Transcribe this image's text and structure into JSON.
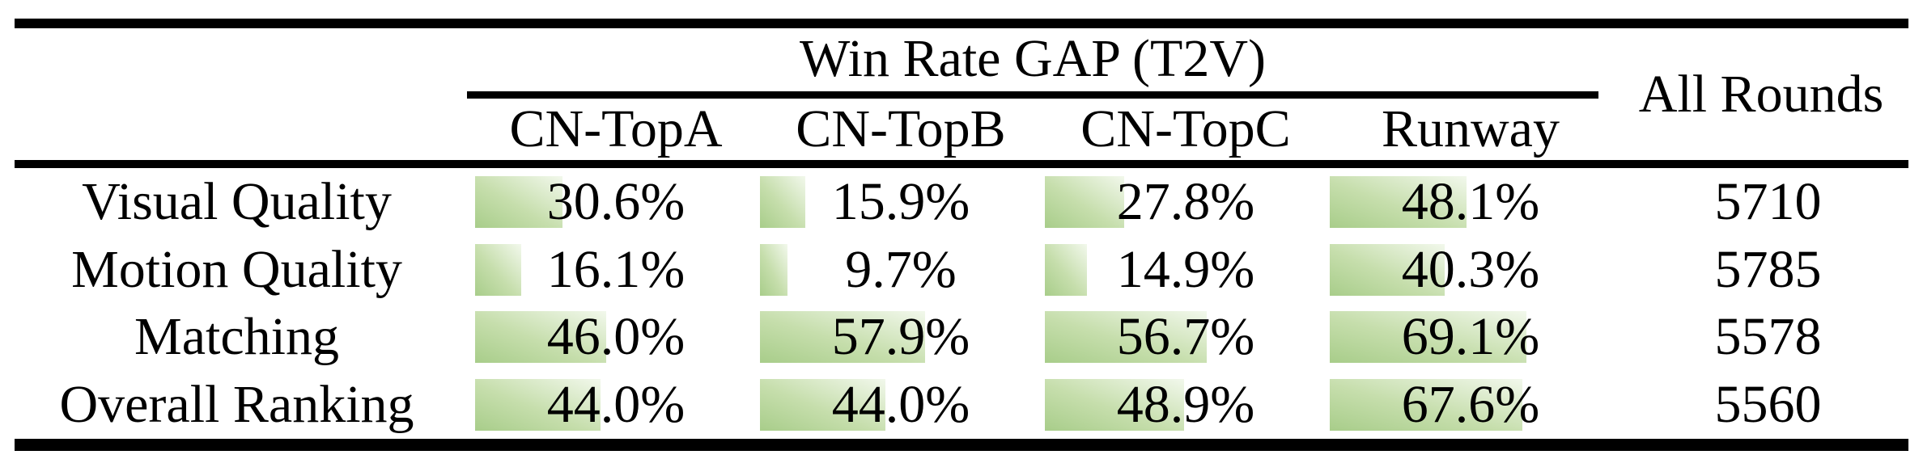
{
  "table": {
    "group_header": "Win Rate GAP (T2V)",
    "all_rounds_header": "All Rounds",
    "columns": [
      "CN-TopA",
      "CN-TopB",
      "CN-TopC",
      "Runway"
    ],
    "rows": [
      {
        "label": "Visual Quality",
        "cells": [
          {
            "display": "30.6%",
            "pct": 30.6
          },
          {
            "display": "15.9%",
            "pct": 15.9
          },
          {
            "display": "27.8%",
            "pct": 27.8
          },
          {
            "display": "48.1%",
            "pct": 48.1
          }
        ],
        "all_rounds": "5710"
      },
      {
        "label": "Motion Quality",
        "cells": [
          {
            "display": "16.1%",
            "pct": 16.1
          },
          {
            "display": "9.7%",
            "pct": 9.7
          },
          {
            "display": "14.9%",
            "pct": 14.9
          },
          {
            "display": "40.3%",
            "pct": 40.3
          }
        ],
        "all_rounds": "5785"
      },
      {
        "label": "Matching",
        "cells": [
          {
            "display": "46.0%",
            "pct": 46.0
          },
          {
            "display": "57.9%",
            "pct": 57.9
          },
          {
            "display": "56.7%",
            "pct": 56.7
          },
          {
            "display": "69.1%",
            "pct": 69.1
          }
        ],
        "all_rounds": "5578"
      },
      {
        "label": "Overall Ranking",
        "cells": [
          {
            "display": "44.0%",
            "pct": 44.0
          },
          {
            "display": "44.0%",
            "pct": 44.0
          },
          {
            "display": "48.9%",
            "pct": 48.9
          },
          {
            "display": "67.6%",
            "pct": 67.6
          }
        ],
        "all_rounds": "5560"
      }
    ]
  },
  "colors": {
    "bar_gradient_start": "#a8cd8a",
    "bar_gradient_mid": "#c6deac",
    "bar_gradient_end": "#f2f8ec",
    "rule": "#000000",
    "text": "#000000"
  },
  "chart_data": {
    "type": "table",
    "title": "Win Rate GAP (T2V)",
    "columns": [
      "CN-TopA",
      "CN-TopB",
      "CN-TopC",
      "Runway",
      "All Rounds"
    ],
    "row_labels": [
      "Visual Quality",
      "Motion Quality",
      "Matching",
      "Overall Ranking"
    ],
    "series": [
      {
        "name": "Visual Quality",
        "win_rate_gap_pct": [
          30.6,
          15.9,
          27.8,
          48.1
        ],
        "all_rounds": 5710
      },
      {
        "name": "Motion Quality",
        "win_rate_gap_pct": [
          16.1,
          9.7,
          14.9,
          40.3
        ],
        "all_rounds": 5785
      },
      {
        "name": "Matching",
        "win_rate_gap_pct": [
          46.0,
          57.9,
          56.7,
          69.1
        ],
        "all_rounds": 5578
      },
      {
        "name": "Overall Ranking",
        "win_rate_gap_pct": [
          44.0,
          44.0,
          48.9,
          67.6
        ],
        "all_rounds": 5560
      }
    ],
    "cell_bar_scale": [
      0,
      100
    ],
    "notes": "Green in-cell data bars are proportional to the percentage value; gradient fades from green (bottom-left) to white (top-right)."
  }
}
